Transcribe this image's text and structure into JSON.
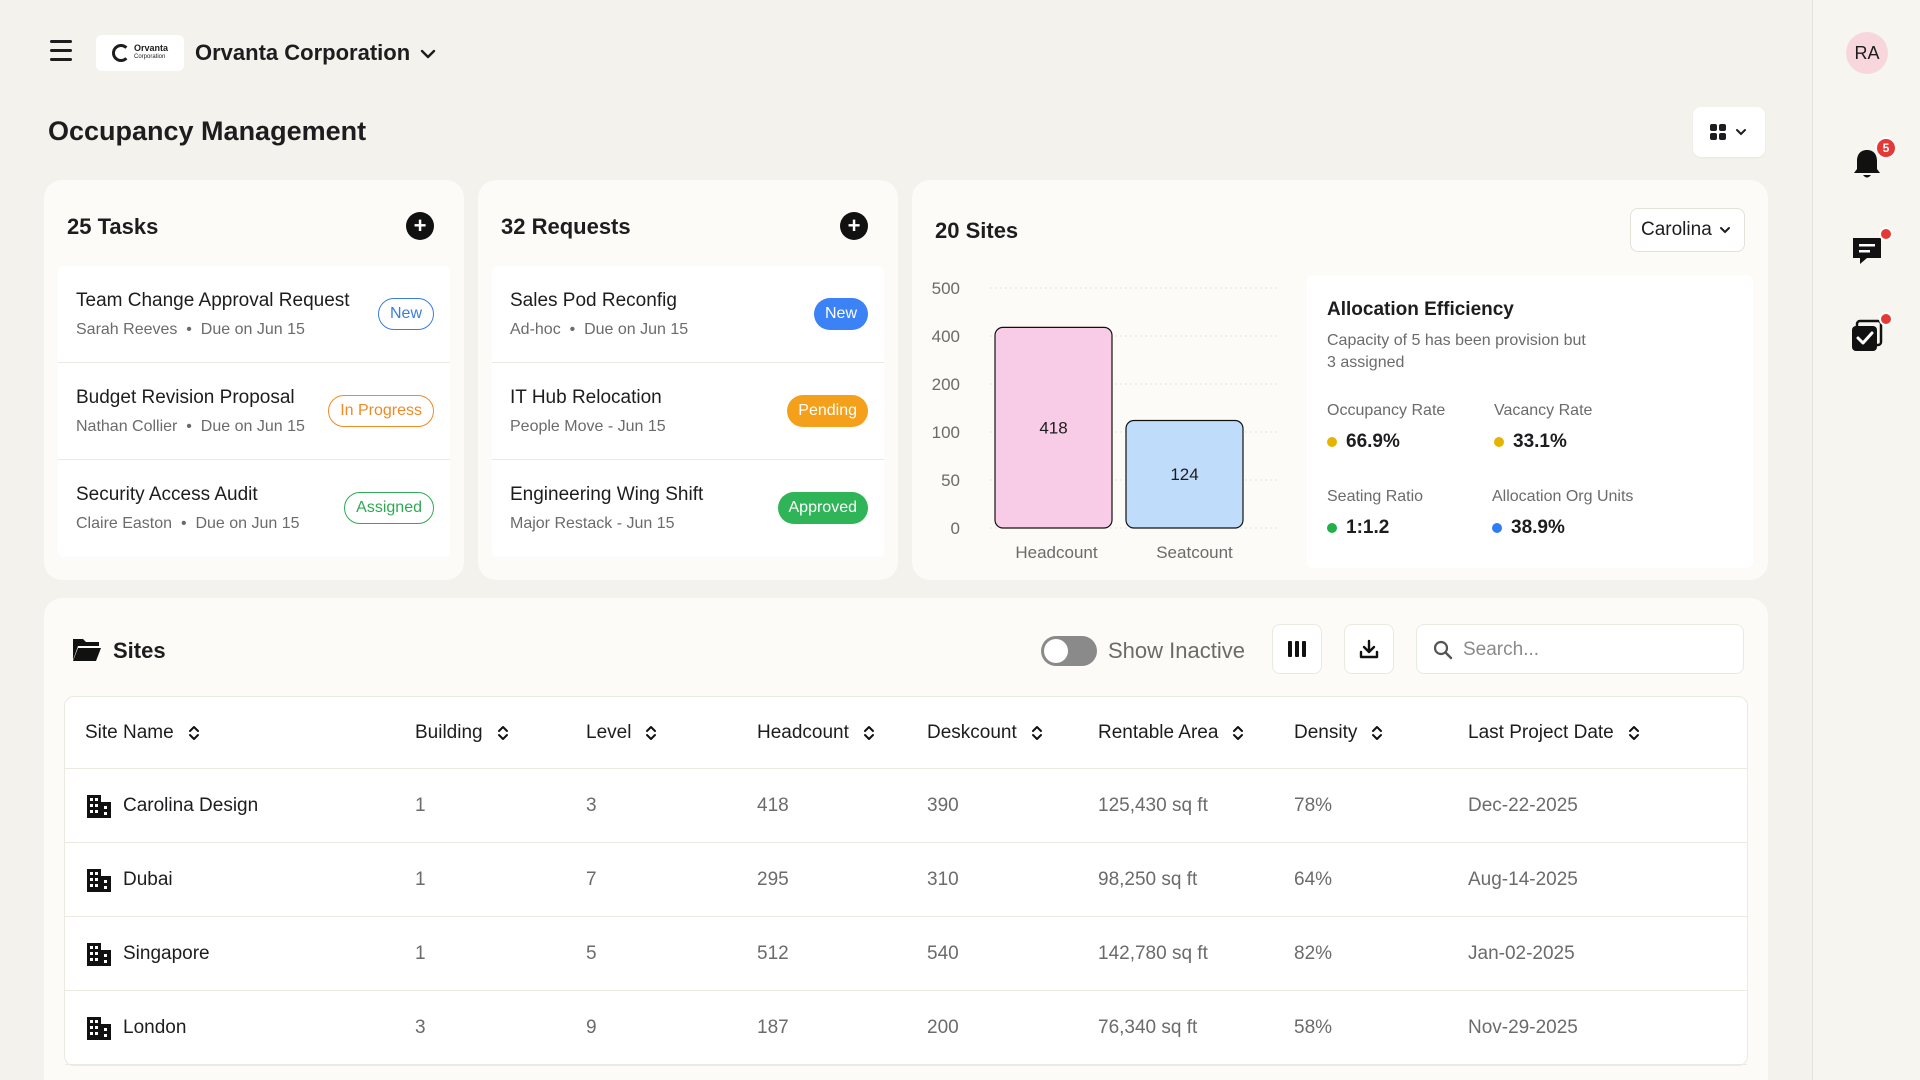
{
  "header": {
    "org_name": "Orvanta Corporation",
    "logo_text": "Orvanta",
    "logo_subtext": "Corporation",
    "page_title": "Occupancy Management"
  },
  "user": {
    "initials": "RA",
    "notification_count": "5"
  },
  "tasks": {
    "title": "25 Tasks",
    "add_label": "+",
    "items": [
      {
        "title": "Team Change Approval Request",
        "person": "Sarah Reeves",
        "due": "Due on Jun 15",
        "status": "New"
      },
      {
        "title": "Budget Revision Proposal",
        "person": "Nathan Collier",
        "due": "Due on Jun 15",
        "status": "In Progress"
      },
      {
        "title": "Security Access Audit",
        "person": "Claire Easton",
        "due": "Due on Jun 15",
        "status": "Assigned"
      }
    ]
  },
  "requests": {
    "title": "32 Requests",
    "add_label": "+",
    "items": [
      {
        "title": "Sales Pod Reconfig",
        "sub": "Ad-hoc",
        "due": "Due on Jun 15",
        "status": "New"
      },
      {
        "title": "IT Hub Relocation",
        "sub": "People Move - Jun 15",
        "status": "Pending"
      },
      {
        "title": "Engineering Wing Shift",
        "sub": "Major Restack - Jun 15",
        "status": "Approved"
      }
    ]
  },
  "sites_card": {
    "title": "20 Sites",
    "selected_site": "Carolina",
    "efficiency": {
      "title": "Allocation Efficiency",
      "description": "Capacity of 5 has been provision but 3 assigned",
      "metrics": [
        {
          "label": "Occupancy Rate",
          "value": "66.9%",
          "color": "#e6b400"
        },
        {
          "label": "Vacancy Rate",
          "value": "33.1%",
          "color": "#e6b400"
        },
        {
          "label": "Seating Ratio",
          "value": "1:1.2",
          "color": "#22b04b"
        },
        {
          "label": "Allocation Org Units",
          "value": "38.9%",
          "color": "#2f7df6"
        }
      ]
    }
  },
  "chart_data": {
    "type": "bar",
    "categories": [
      "Headcount",
      "Seatcount"
    ],
    "values": [
      418,
      124
    ],
    "y_ticks": [
      "0",
      "50",
      "100",
      "200",
      "400",
      "500"
    ],
    "colors": [
      "#f8cce6",
      "#bfdcfb"
    ],
    "grid": true
  },
  "table": {
    "title": "Sites",
    "show_inactive_label": "Show Inactive",
    "search_placeholder": "Search...",
    "columns": [
      "Site Name",
      "Building",
      "Level",
      "Headcount",
      "Deskcount",
      "Rentable Area",
      "Density",
      "Last Project Date"
    ],
    "rows": [
      [
        "Carolina Design",
        "1",
        "3",
        "418",
        "390",
        "125,430 sq ft",
        "78%",
        "Dec-22-2025"
      ],
      [
        "Dubai",
        "1",
        "7",
        "295",
        "310",
        "98,250 sq ft",
        "64%",
        "Aug-14-2025"
      ],
      [
        "Singapore",
        "1",
        "5",
        "512",
        "540",
        "142,780 sq ft",
        "82%",
        "Jan-02-2025"
      ],
      [
        "London",
        "3",
        "9",
        "187",
        "200",
        "76,340 sq ft",
        "58%",
        "Nov-29-2025"
      ]
    ]
  }
}
